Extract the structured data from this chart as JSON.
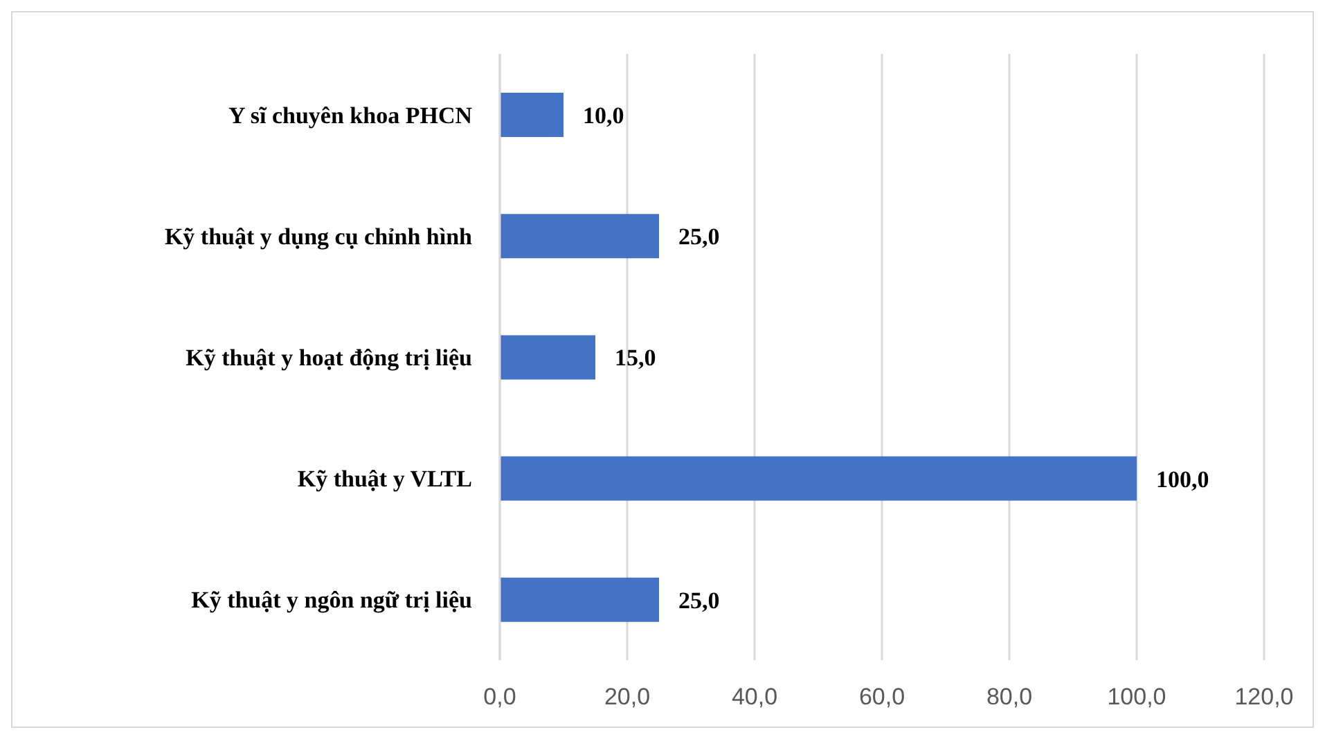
{
  "chart_data": {
    "type": "bar",
    "orientation": "horizontal",
    "categories": [
      "Y sĩ chuyên khoa PHCN",
      "Kỹ thuật y dụng cụ chỉnh hình",
      "Kỹ thuật y hoạt động trị liệu",
      "Kỹ thuật y VLTL",
      "Kỹ thuật y ngôn ngữ trị liệu"
    ],
    "values": [
      10,
      25,
      15,
      100,
      25
    ],
    "value_labels": [
      "10,0",
      "25,0",
      "15,0",
      "100,0",
      "25,0"
    ],
    "color": "#4472c4",
    "xlim": [
      0,
      120
    ],
    "xticks": [
      {
        "value": 0,
        "label": "0,0"
      },
      {
        "value": 20,
        "label": "20,0"
      },
      {
        "value": 40,
        "label": "40,0"
      },
      {
        "value": 60,
        "label": "60,0"
      },
      {
        "value": 80,
        "label": "80,0"
      },
      {
        "value": 100,
        "label": "100,0"
      },
      {
        "value": 120,
        "label": "120,0"
      }
    ],
    "grid": "x"
  }
}
